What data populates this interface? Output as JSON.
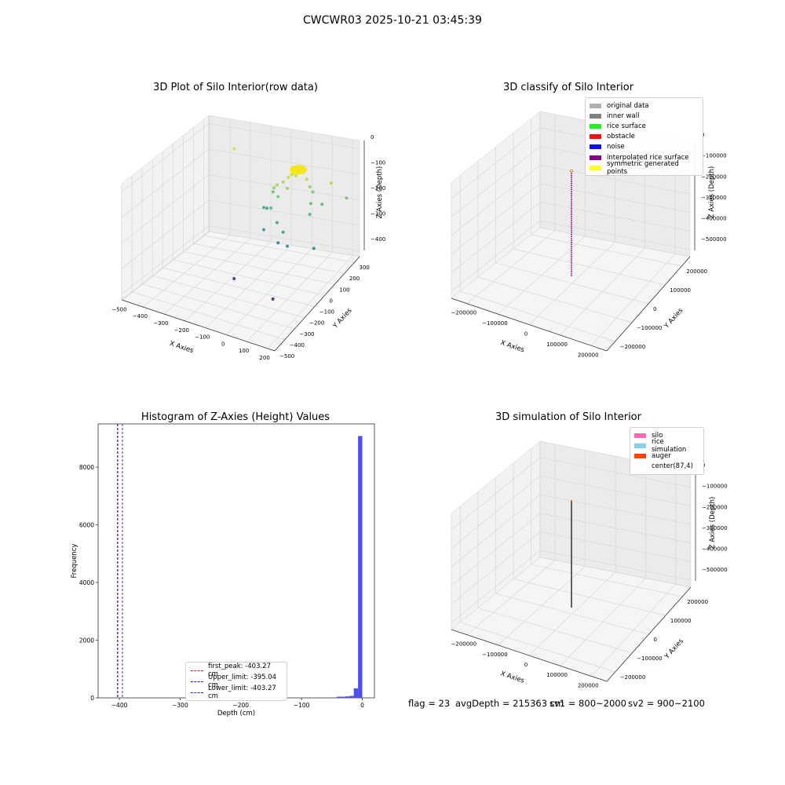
{
  "figure": {
    "suptitle": "CWCWR03 2025-10-21 03:45:39",
    "status": {
      "flag": "flag = 23",
      "avg_depth": "avgDepth = 215363 cm",
      "sv1": "sv1 = 800~2000",
      "sv2": "sv2 = 900~2100"
    }
  },
  "colors": {
    "histogram_bar": "#4d4df0",
    "first_peak_line": "#cc2222",
    "limit_line": "#2222cc",
    "grid": "#d8d8d8",
    "pane": "#f2f2f2"
  },
  "chart_data": [
    {
      "type": "scatter",
      "title": "3D Plot of Silo Interior(row data)",
      "xlabel": "X Axies",
      "ylabel": "Y Axies",
      "zlabel": "Z Axies (Depth)",
      "xlim": [
        -500,
        250
      ],
      "ylim": [
        -500,
        350
      ],
      "zlim": [
        -450,
        0
      ],
      "xticks": [
        "−500",
        "−400",
        "−300",
        "−200",
        "−100",
        "0",
        "100",
        "200"
      ],
      "yticks": [
        "−500",
        "−400",
        "−300",
        "−200",
        "−100",
        "0",
        "100",
        "200",
        "300"
      ],
      "zticks": [
        "0",
        "−100",
        "−200",
        "−300",
        "−400"
      ],
      "colormap": "viridis",
      "points": [
        {
          "x": 20,
          "y": 150,
          "z": -20
        },
        {
          "x": 30,
          "y": 160,
          "z": -25
        },
        {
          "x": 10,
          "y": 140,
          "z": -30
        },
        {
          "x": 40,
          "y": 170,
          "z": -15
        },
        {
          "x": 25,
          "y": 155,
          "z": -35
        },
        {
          "x": 0,
          "y": 130,
          "z": -40
        },
        {
          "x": 50,
          "y": 180,
          "z": -22
        },
        {
          "x": 15,
          "y": 145,
          "z": -28
        },
        {
          "x": 35,
          "y": 165,
          "z": -18
        },
        {
          "x": 60,
          "y": 190,
          "z": -50
        },
        {
          "x": -20,
          "y": 120,
          "z": -60
        },
        {
          "x": -40,
          "y": 100,
          "z": -70
        },
        {
          "x": 70,
          "y": 200,
          "z": -80
        },
        {
          "x": -60,
          "y": 110,
          "z": -90
        },
        {
          "x": 80,
          "y": 210,
          "z": -100
        },
        {
          "x": -30,
          "y": 90,
          "z": -110
        },
        {
          "x": -80,
          "y": 140,
          "z": -120
        },
        {
          "x": 90,
          "y": 170,
          "z": -130
        },
        {
          "x": -50,
          "y": 60,
          "z": -150
        },
        {
          "x": -100,
          "y": 90,
          "z": -170
        },
        {
          "x": 100,
          "y": 140,
          "z": -160
        },
        {
          "x": -10,
          "y": 40,
          "z": -190
        },
        {
          "x": 30,
          "y": 20,
          "z": -210
        },
        {
          "x": -70,
          "y": 30,
          "z": -230
        },
        {
          "x": 60,
          "y": 0,
          "z": -250
        },
        {
          "x": -120,
          "y": 160,
          "z": -200
        },
        {
          "x": 150,
          "y": 250,
          "z": -60
        },
        {
          "x": 120,
          "y": 220,
          "z": -140
        },
        {
          "x": -300,
          "y": 200,
          "z": -30
        },
        {
          "x": 200,
          "y": 300,
          "z": -120
        },
        {
          "x": -150,
          "y": -100,
          "z": -400
        },
        {
          "x": 50,
          "y": -120,
          "z": -420
        },
        {
          "x": 150,
          "y": 80,
          "z": -260
        },
        {
          "x": -20,
          "y": 70,
          "z": -280
        },
        {
          "x": 5,
          "y": 110,
          "z": -75
        }
      ]
    },
    {
      "type": "scatter",
      "title": "3D classify of Silo Interior",
      "xlabel": "X Axies",
      "ylabel": "Y Axies",
      "zlabel": "Z Axies (Depth)",
      "xlim": [
        -250000,
        250000
      ],
      "ylim": [
        -250000,
        250000
      ],
      "zlim": [
        -550000,
        0
      ],
      "xticks": [
        "−200000",
        "−100000",
        "0",
        "100000",
        "200000"
      ],
      "yticks": [
        "−200000",
        "−100000",
        "0",
        "100000",
        "200000"
      ],
      "zticks": [
        "0",
        "−100000",
        "−200000",
        "−300000",
        "−400000",
        "−500000"
      ],
      "legend_position": "upper right",
      "legend": [
        {
          "label": "original data",
          "color": "#b0b0b0"
        },
        {
          "label": "inner wall",
          "color": "#808080"
        },
        {
          "label": "rice surface",
          "color": "#22ee22"
        },
        {
          "label": "obstacle",
          "color": "#ee1111"
        },
        {
          "label": "noise",
          "color": "#1111dd"
        },
        {
          "label": "interpolated rice surface",
          "color": "#880088"
        },
        {
          "label": "symmetric generated points",
          "color": "#ffff22"
        }
      ],
      "column": {
        "x": 0,
        "y": 0,
        "z_top": 0,
        "z_bottom": -400000
      }
    },
    {
      "type": "bar",
      "title": "Histogram of Z-Axies (Height) Values",
      "xlabel": "Depth (cm)",
      "ylabel": "Frequency",
      "xlim": [
        -435,
        20
      ],
      "ylim": [
        0,
        9500
      ],
      "xticks": [
        -400,
        -300,
        -200,
        -100,
        0
      ],
      "xtick_labels": [
        "−400",
        "−300",
        "−200",
        "−100",
        "0"
      ],
      "yticks": [
        0,
        2000,
        4000,
        6000,
        8000
      ],
      "yticks_labels": [
        "0",
        "2000",
        "4000",
        "6000",
        "8000"
      ],
      "bins": [
        {
          "x0": -42,
          "x1": -35,
          "count": 40
        },
        {
          "x0": -35,
          "x1": -28,
          "count": 40
        },
        {
          "x0": -28,
          "x1": -21,
          "count": 50
        },
        {
          "x0": -21,
          "x1": -14,
          "count": 70
        },
        {
          "x0": -14,
          "x1": -7,
          "count": 330
        },
        {
          "x0": -7,
          "x1": 0,
          "count": 9080
        }
      ],
      "vlines": [
        {
          "x": -403.27,
          "label": "first_peak: -403.27 cm",
          "color": "#cc2222"
        },
        {
          "x": -395.04,
          "label": "Upper_limit: -395.04 cm",
          "color": "#2222cc"
        },
        {
          "x": -403.27,
          "label": "Lower_limit: -403.27 cm",
          "color": "#2222cc"
        }
      ],
      "legend_position": "lower center"
    },
    {
      "type": "scatter",
      "title": "3D simulation of Silo Interior",
      "xlabel": "X Axies",
      "ylabel": "Y Axies",
      "zlabel": "Z Axies (Depth)",
      "xlim": [
        -250000,
        250000
      ],
      "ylim": [
        -250000,
        250000
      ],
      "zlim": [
        -550000,
        0
      ],
      "xticks": [
        "−200000",
        "−100000",
        "0",
        "100000",
        "200000"
      ],
      "yticks": [
        "−200000",
        "−100000",
        "0",
        "100000",
        "200000"
      ],
      "zticks": [
        "0",
        "−100000",
        "−200000",
        "−300000",
        "−400000",
        "−500000"
      ],
      "legend_position": "upper right",
      "legend": [
        {
          "label": "silo",
          "color": "#ff69b4"
        },
        {
          "label": "rice simulation",
          "color": "#87ceeb"
        },
        {
          "label": "auger",
          "color": "#ff4500"
        },
        {
          "label": "center(87,4)",
          "color": "#ffffff"
        }
      ],
      "column": {
        "x": 0,
        "y": 0,
        "z_top": 0,
        "z_bottom": -400000
      }
    }
  ]
}
